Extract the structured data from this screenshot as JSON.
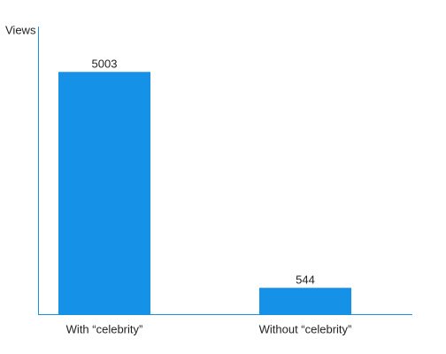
{
  "chart_data": {
    "type": "bar",
    "y_label": "Views",
    "categories": [
      "With “celebrity”",
      "Without “celebrity”"
    ],
    "values": [
      5003,
      544
    ],
    "color": "#1691e8",
    "ylim": [
      0,
      5940
    ]
  }
}
